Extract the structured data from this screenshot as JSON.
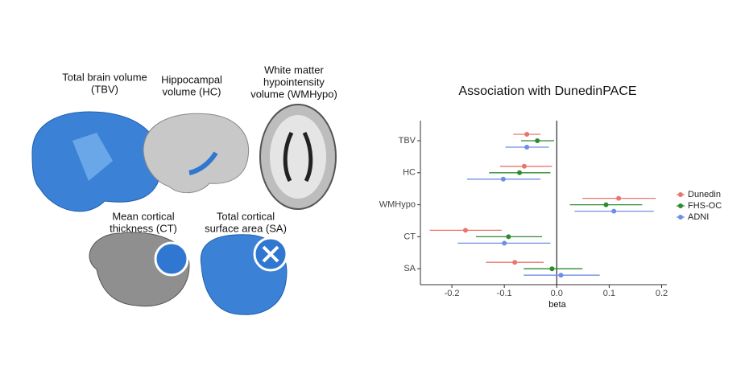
{
  "brain_panel": {
    "labels": [
      {
        "lines": [
          "Total brain volume",
          "(TBV)"
        ]
      },
      {
        "lines": [
          "Hippocampal",
          "volume (HC)"
        ]
      },
      {
        "lines": [
          "White matter",
          "hypointensity",
          "volume (WMHypo)"
        ]
      },
      {
        "lines": [
          "Mean cortical",
          "thickness (CT)"
        ]
      },
      {
        "lines": [
          "Total cortical",
          "surface area (SA)"
        ]
      }
    ]
  },
  "chart_data": {
    "type": "forest",
    "title": "Association with DunedinPACE",
    "x_label": "beta",
    "categories": [
      "TBV",
      "HC",
      "WMHypo",
      "CT",
      "SA"
    ],
    "series": [
      {
        "name": "Dunedin",
        "color": "#e8766d",
        "values": [
          -0.057,
          -0.062,
          0.118,
          -0.174,
          -0.08
        ],
        "lower": [
          -0.083,
          -0.108,
          0.049,
          -0.242,
          -0.135
        ],
        "upper": [
          -0.031,
          -0.009,
          0.189,
          -0.105,
          -0.025
        ]
      },
      {
        "name": "FHS-OC",
        "color": "#2e8b2e",
        "values": [
          -0.037,
          -0.071,
          0.094,
          -0.092,
          -0.009
        ],
        "lower": [
          -0.068,
          -0.129,
          0.025,
          -0.154,
          -0.063
        ],
        "upper": [
          -0.005,
          -0.012,
          0.163,
          -0.028,
          0.049
        ]
      },
      {
        "name": "ADNI",
        "color": "#6c8fe3",
        "values": [
          -0.057,
          -0.102,
          0.109,
          -0.1,
          0.008
        ],
        "lower": [
          -0.098,
          -0.171,
          0.034,
          -0.189,
          -0.063
        ],
        "upper": [
          -0.015,
          -0.031,
          0.185,
          -0.012,
          0.082
        ]
      }
    ],
    "xlim": [
      -0.26,
      0.21
    ],
    "xticks": [
      -0.2,
      -0.1,
      {
        "value": 0,
        "label": "0.0"
      },
      0.1,
      0.2
    ],
    "legend": "right"
  }
}
